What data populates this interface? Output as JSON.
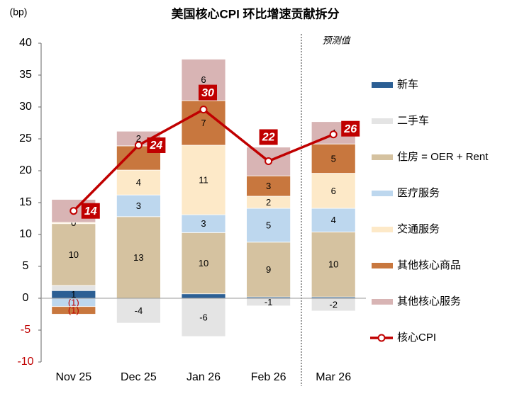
{
  "chart_data": {
    "type": "stacked_bar_line",
    "title": "美国核心CPI 环比增速贡献拆分",
    "y_label": "(bp)",
    "annotation": "预测值",
    "categories": [
      "Nov 25",
      "Dec 25",
      "Jan 26",
      "Feb 26",
      "Mar 26"
    ],
    "ylim": [
      -10,
      40
    ],
    "yticks": [
      -10,
      -5,
      0,
      5,
      10,
      15,
      20,
      25,
      30,
      35,
      40
    ],
    "series": [
      {
        "name": "新车",
        "color": "#2c5f94",
        "values": [
          1.2,
          0,
          0.7,
          0.2,
          0.2
        ],
        "value_labels": [
          "1",
          null,
          null,
          null,
          null
        ]
      },
      {
        "name": "二手车",
        "color": "#e4e4e4",
        "values": [
          0.8,
          -3.9,
          -6.0,
          -1.2,
          -2.0
        ],
        "value_labels": [
          null,
          "-4",
          "-6",
          "-1",
          "-2"
        ]
      },
      {
        "name": "住房 = OER + Rent",
        "color": "#d5c2a0",
        "values": [
          9.7,
          12.8,
          9.6,
          8.6,
          10.2
        ],
        "value_labels": [
          "10",
          "13",
          "10",
          "9",
          "10"
        ]
      },
      {
        "name": "医疗服务",
        "color": "#bdd7ee",
        "values": [
          -1.3,
          3.4,
          2.8,
          5.3,
          3.7
        ],
        "value_labels": [
          "(1)",
          "3",
          "3",
          "5",
          "4"
        ]
      },
      {
        "name": "交通服务",
        "color": "#fde9c8",
        "values": [
          0.2,
          3.9,
          10.9,
          1.9,
          5.5
        ],
        "value_labels": [
          "0",
          "4",
          "11",
          "2",
          "6"
        ]
      },
      {
        "name": "其他核心商品",
        "color": "#c8773e",
        "values": [
          -1.2,
          3.8,
          7.0,
          3.2,
          4.6
        ],
        "value_labels": [
          "(1)",
          null,
          "7",
          "3",
          "5"
        ]
      },
      {
        "name": "其他核心服务",
        "color": "#d8b4b4",
        "values": [
          3.6,
          2.3,
          6.5,
          4.5,
          3.5
        ],
        "value_labels": [
          "4",
          "2",
          "6",
          null,
          "4"
        ]
      }
    ],
    "line": {
      "name": "核心CPI",
      "color": "#c00000",
      "values": [
        13.7,
        24.0,
        29.6,
        21.5,
        25.7
      ],
      "value_labels": [
        "14",
        "24",
        "30",
        "22",
        "26"
      ]
    }
  }
}
